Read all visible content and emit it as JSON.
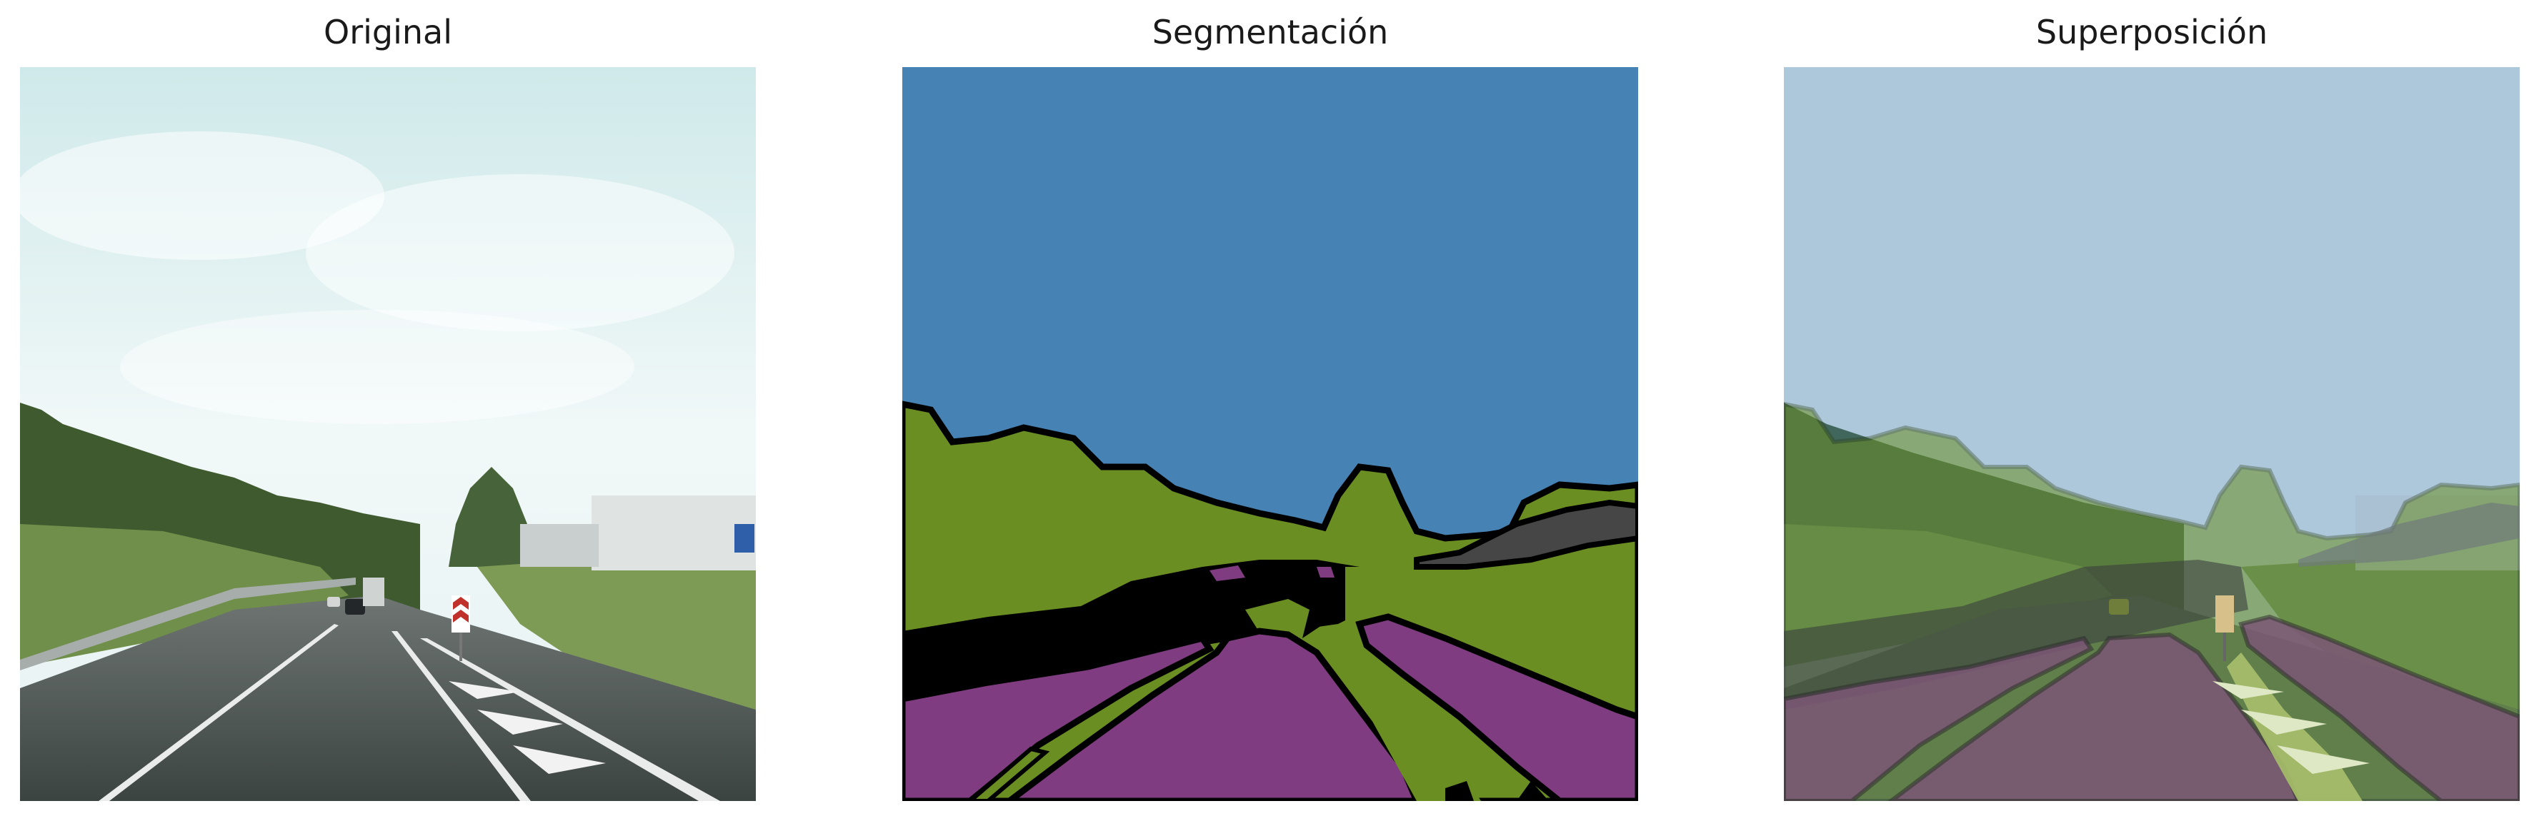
{
  "panels": [
    {
      "title": "Original"
    },
    {
      "title": "Segmentación"
    },
    {
      "title": "Superposición"
    }
  ],
  "colors": {
    "sky_class": "#4682b4",
    "vegetation_class": "#6b8e23",
    "road_class": "#803c80",
    "building_class": "#464646",
    "boundary": "#000000"
  }
}
